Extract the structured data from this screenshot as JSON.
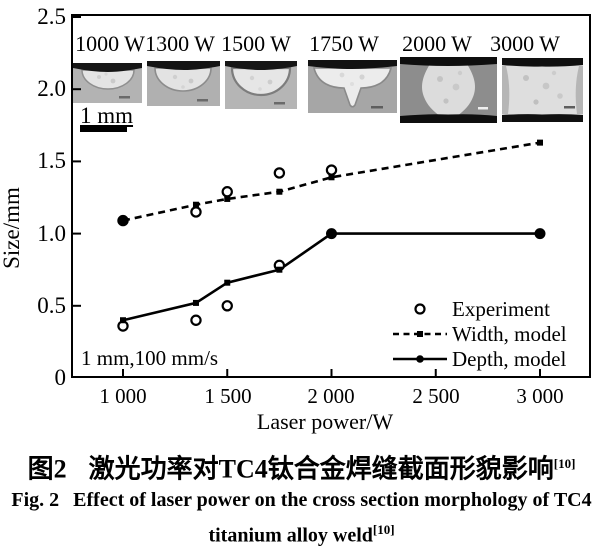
{
  "figure": {
    "y_axis": {
      "label": "Size/mm",
      "ticks": [
        "2.5",
        "2.0",
        "1.5",
        "1.0",
        "0.5",
        "0"
      ]
    },
    "x_axis": {
      "label": "Laser power/W",
      "ticks": [
        "1 000",
        "1 500",
        "2 000",
        "2 500",
        "3 000"
      ]
    },
    "insets": [
      {
        "label": "1000 W"
      },
      {
        "label": "1300 W"
      },
      {
        "label": "1500 W"
      },
      {
        "label": "1750 W"
      },
      {
        "label": "2000 W"
      },
      {
        "label": "3000 W"
      }
    ],
    "scale_bar": {
      "label": "1 mm"
    },
    "annotation": "1 mm,100 mm/s",
    "legend": [
      {
        "label": "Experiment",
        "marker": "open-circle"
      },
      {
        "label": "Width, model",
        "marker": "dashed-line"
      },
      {
        "label": "Depth, model",
        "marker": "solid-line"
      }
    ],
    "colors": {
      "ink": "#000000",
      "background": "#ffffff"
    }
  },
  "chart_data": {
    "type": "line",
    "title": "",
    "xlabel": "Laser power/W",
    "ylabel": "Size/mm",
    "xlim": [
      750,
      3235
    ],
    "ylim": [
      0,
      2.5
    ],
    "x_ticks": [
      1000,
      1500,
      2000,
      2500,
      3000
    ],
    "y_ticks": [
      0,
      0.5,
      1.0,
      1.5,
      2.0,
      2.5
    ],
    "grid": false,
    "legend_position": "lower right",
    "series": [
      {
        "name": "Width, model",
        "type": "line",
        "line_style": "dashed",
        "x": [
          1000,
          1350,
          1500,
          1750,
          2000,
          3000
        ],
        "y": [
          1.09,
          1.2,
          1.24,
          1.29,
          1.39,
          1.63
        ],
        "point_markers": [
          "dot",
          "square",
          "square",
          "square",
          "square",
          "square"
        ]
      },
      {
        "name": "Depth, model",
        "type": "line",
        "line_style": "solid",
        "x": [
          1000,
          1350,
          1500,
          1750,
          2000,
          3000
        ],
        "y": [
          0.4,
          0.52,
          0.66,
          0.75,
          1.0,
          1.0
        ],
        "point_markers": [
          "square",
          "square",
          "square",
          "square",
          "dot-large",
          "dot-large"
        ]
      },
      {
        "name": "Experiment (weld width)",
        "type": "scatter",
        "marker": "open-circle",
        "x": [
          1000,
          1350,
          1500,
          1750,
          2000
        ],
        "y": [
          1.09,
          1.15,
          1.29,
          1.42,
          1.44
        ]
      },
      {
        "name": "Experiment (weld depth)",
        "type": "scatter",
        "marker": "open-circle",
        "x": [
          1000,
          1350,
          1500,
          1750
        ],
        "y": [
          0.36,
          0.4,
          0.5,
          0.78
        ]
      }
    ]
  },
  "caption": {
    "zh_label": "图2",
    "zh_text": "激光功率对TC4钛合金焊缝截面形貌影响",
    "zh_ref": "[10]",
    "en_label": "Fig. 2",
    "en_text_line1": "Effect of laser power on the cross section morphology of TC4",
    "en_text_line2": "titanium alloy weld",
    "en_ref": "[10]"
  }
}
